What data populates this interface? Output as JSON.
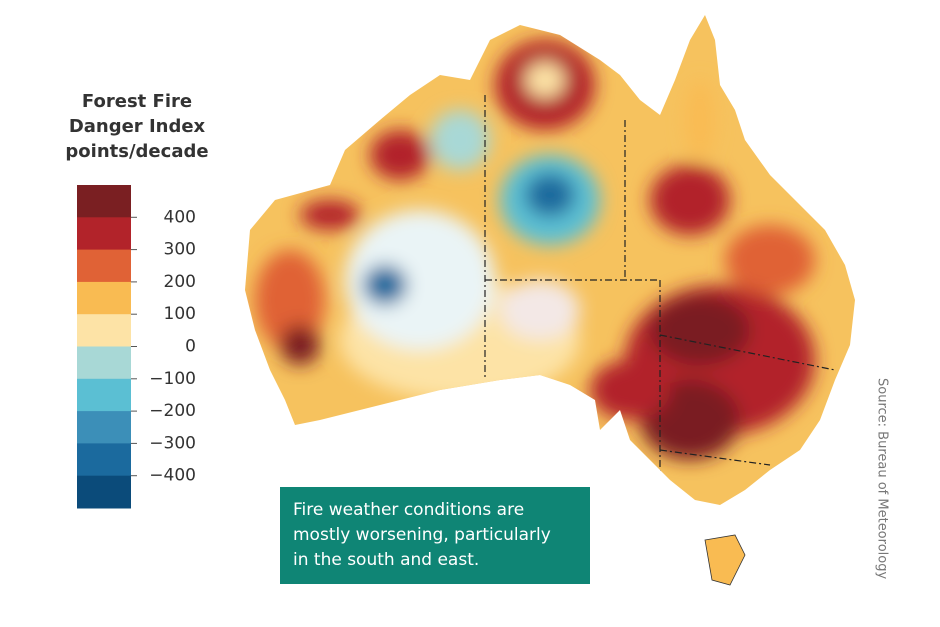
{
  "legend": {
    "title": [
      "Forest Fire",
      "Danger Index",
      "points/decade"
    ],
    "colors": [
      "#7a1f22",
      "#b2232a",
      "#e06236",
      "#f9bb52",
      "#fde3a6",
      "#a8d8d6",
      "#5bbfd3",
      "#3c8fb8",
      "#1b6a9e",
      "#0b4b7a"
    ],
    "ticks": [
      400,
      300,
      200,
      100,
      0,
      {
        "value": -100,
        "label": "−100"
      },
      {
        "value": -200,
        "label": "−200"
      },
      {
        "value": -300,
        "label": "−300"
      },
      {
        "value": -400,
        "label": "−400"
      }
    ]
  },
  "callout": [
    "Fire weather conditions are",
    "mostly worsening, particularly",
    "in the south and east."
  ],
  "source": "Source: Bureau of Meteorology"
}
